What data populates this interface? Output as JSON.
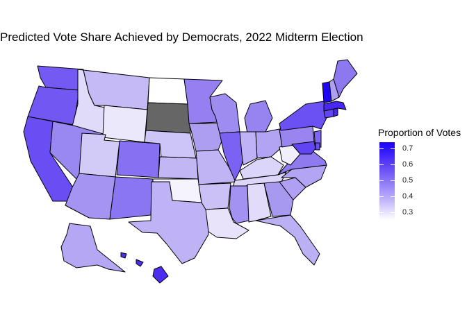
{
  "title": "Predicted Vote Share Achieved by Democrats, 2022 Midterm Election",
  "legend": {
    "title": "Proportion of Votes",
    "ticks": [
      "0.7",
      "0.6",
      "0.5",
      "0.4",
      "0.3"
    ],
    "low_color": "#ffffff",
    "high_color": "#1a00ff",
    "missing_color": "#666666"
  },
  "state_fills": {
    "VT": "#1f07f5",
    "MA": "#4826f4",
    "RI": "#4a28f4",
    "HI": "#4b2df2",
    "CA": "#6a4ef4",
    "CT": "#6245f3",
    "MD": "#6145f3",
    "NY": "#6b50f3",
    "WA": "#7459f2",
    "OR": "#7257f2",
    "IL": "#7b62f3",
    "NJ": "#7e66f2",
    "DE": "#6b4ff4",
    "CO": "#8770f1",
    "NM": "#8b76f2",
    "ME": "#8d78f0",
    "VA": "#8f7bef",
    "MN": "#957ff1",
    "MI": "#9784f0",
    "NV": "#9a88f1",
    "WI": "#9e8cf0",
    "PA": "#9984f0",
    "AZ": "#a594f2",
    "GA": "#a798f0",
    "NH": "#ae9ff3",
    "NC": "#b3a5f3",
    "OH": "#b3a4f3",
    "MS": "#a392f2",
    "IA": "#ae9ef1",
    "SC": "#b09ff2",
    "AK": "#b5a7f3",
    "FL": "#bcb0f5",
    "TX": "#bfb2f5",
    "IN": "#bfb3f5",
    "MO": "#c0b4f5",
    "KS": "#c2b6f5",
    "MT": "#c5b9f6",
    "AR": "#cbc1f6",
    "NE": "#cdc4f7",
    "UT": "#d2cbf7",
    "KY": "#dbd5f9",
    "TN": "#ddd6f9",
    "ID": "#e1dbfa",
    "AL": "#e2dcfa",
    "LA": "#e8e3fb",
    "WY": "#ece8fc",
    "WV": "#f2effd",
    "OK": "#f5f3fd",
    "ND": "#ffffff",
    "SD": "#666666"
  }
}
